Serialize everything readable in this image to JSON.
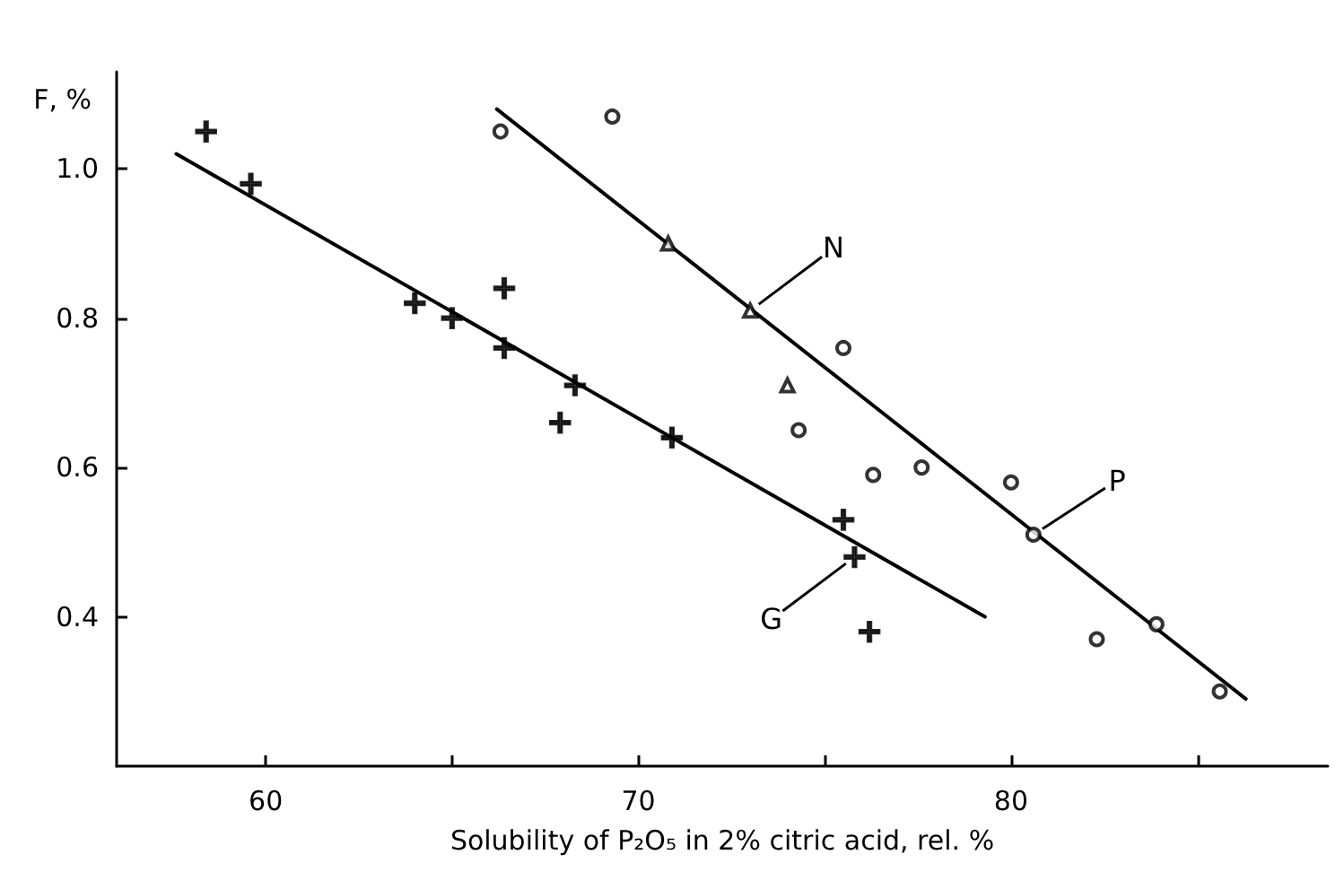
{
  "chart_data": {
    "type": "scatter",
    "xlabel": "Solubility of P₂O₅ in 2% citric acid, rel. %",
    "ylabel": "F, %",
    "xlim": [
      56,
      88.5
    ],
    "xticks": [
      60,
      {
        "value": 65,
        "label": null
      },
      70,
      {
        "value": 75,
        "label": null
      },
      80,
      {
        "value": 85,
        "label": null
      }
    ],
    "ylim": [
      0.2,
      1.13
    ],
    "yticks": [
      0.4,
      0.6,
      0.8,
      {
        "value": 1.0,
        "label": "1.0"
      }
    ],
    "grid": false,
    "series": [
      {
        "marker": "triangle",
        "color": "#000000",
        "x": [
          70.8,
          73.0,
          74.0
        ],
        "values": [
          0.9,
          0.81,
          0.71
        ]
      },
      {
        "marker": "circle",
        "color": "#000000",
        "x": [
          66.3,
          69.3,
          75.5,
          74.3,
          76.3,
          77.6,
          80.0,
          80.6,
          82.3,
          83.9,
          85.6
        ],
        "values": [
          1.05,
          1.07,
          0.76,
          0.65,
          0.59,
          0.6,
          0.58,
          0.51,
          0.37,
          0.39,
          0.3
        ]
      },
      {
        "marker": "cross",
        "color": "#000000",
        "x": [
          58.4,
          59.6,
          64.0,
          65.0,
          66.4,
          66.4,
          67.9,
          68.3,
          70.9,
          75.5,
          75.8,
          76.2
        ],
        "values": [
          1.05,
          0.98,
          0.82,
          0.8,
          0.84,
          0.76,
          0.66,
          0.71,
          0.64,
          0.53,
          0.48,
          0.38
        ]
      },
      {
        "type": "line",
        "marker": "none",
        "color": "#000000",
        "x": [
          66.2,
          86.3
        ],
        "values": [
          1.08,
          0.29
        ]
      },
      {
        "type": "line",
        "marker": "none",
        "color": "#000000",
        "x": [
          57.6,
          79.3
        ],
        "values": [
          1.02,
          0.4
        ]
      }
    ],
    "annotations": [
      {
        "text": "N",
        "x": 73.0,
        "y": 0.81
      },
      {
        "text": "P",
        "x": 80.6,
        "y": 0.51
      },
      {
        "text": "G",
        "x": 75.8,
        "y": 0.48
      }
    ]
  }
}
